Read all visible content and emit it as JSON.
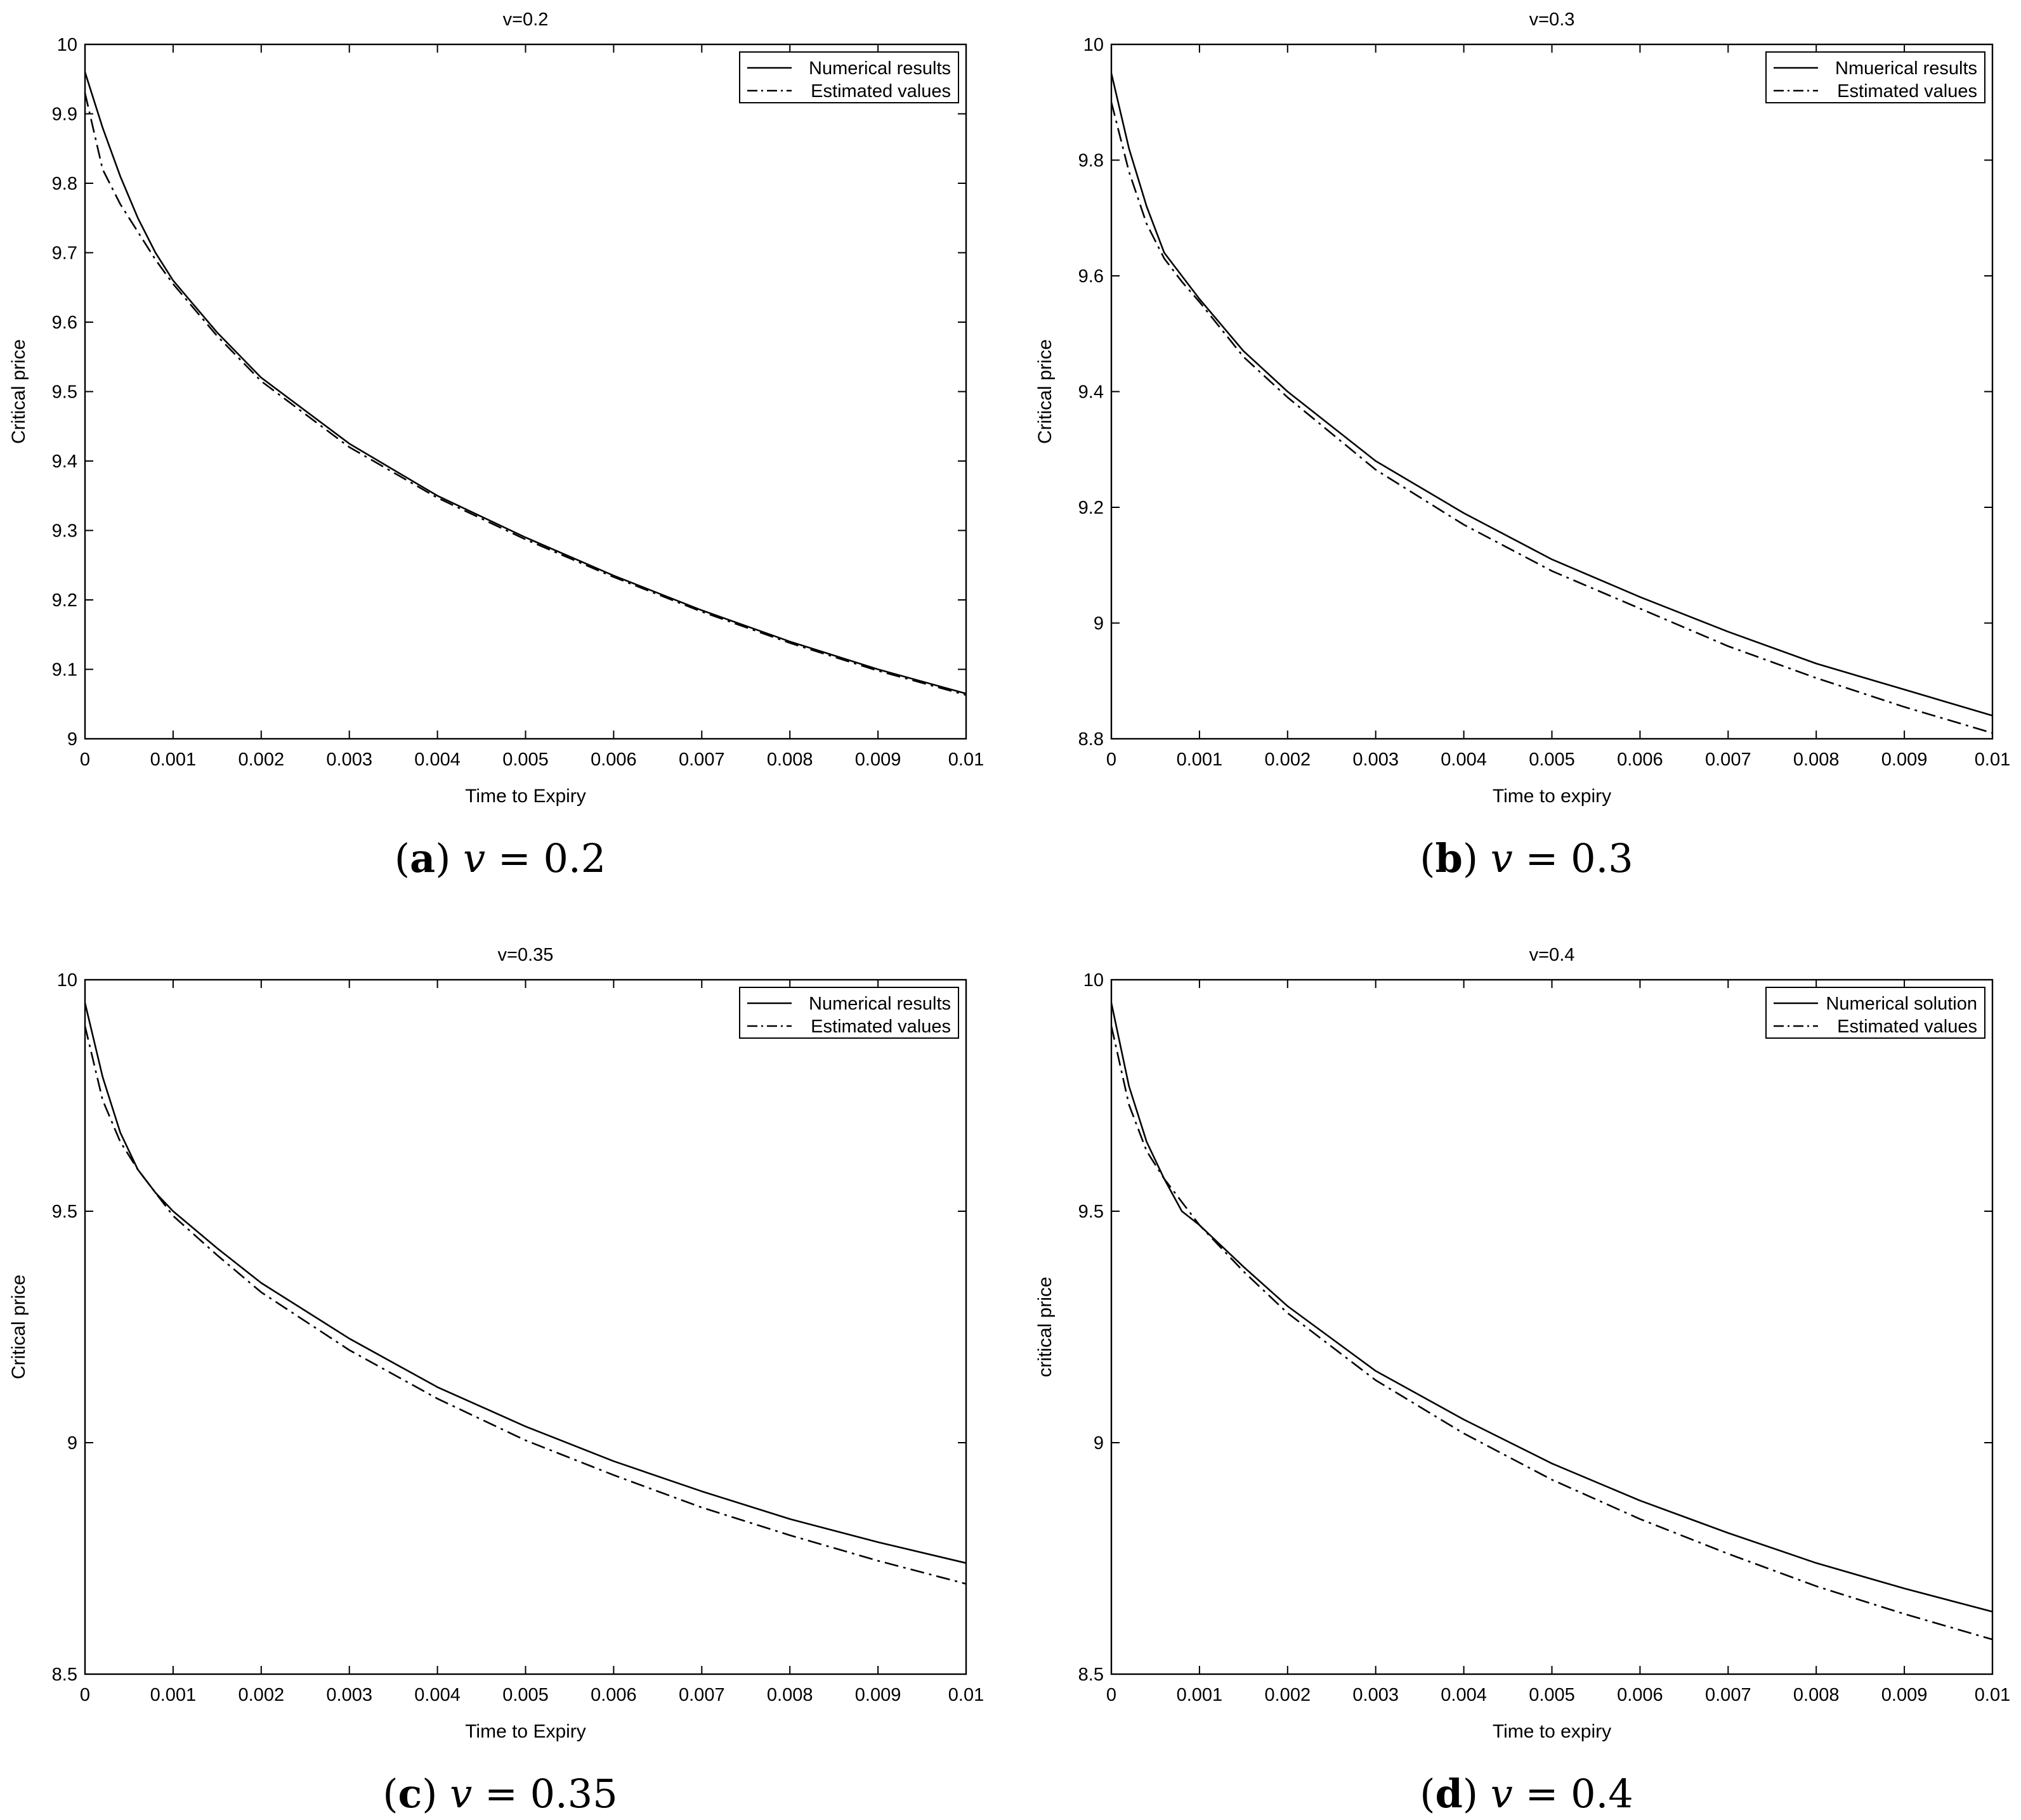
{
  "chart_data": [
    {
      "type": "line",
      "title": "v=0.2",
      "caption": {
        "letter": "a",
        "variable": "v",
        "value": "0.2"
      },
      "xlabel": "Time to Expiry",
      "ylabel": "Critical price",
      "xlim": [
        0,
        0.01
      ],
      "ylim": [
        9,
        10
      ],
      "xticks": [
        0,
        0.001,
        0.002,
        0.003,
        0.004,
        0.005,
        0.006,
        0.007,
        0.008,
        0.009,
        0.01
      ],
      "xtick_labels": [
        "0",
        "0.001",
        "0.002",
        "0.003",
        "0.004",
        "0.005",
        "0.006",
        "0.007",
        "0.008",
        "0.009",
        "0.01"
      ],
      "yticks": [
        9,
        9.1,
        9.2,
        9.3,
        9.4,
        9.5,
        9.6,
        9.7,
        9.8,
        9.9,
        10
      ],
      "ytick_labels": [
        "9",
        "9.1",
        "9.2",
        "9.3",
        "9.4",
        "9.5",
        "9.6",
        "9.7",
        "9.8",
        "9.9",
        "10"
      ],
      "legend_position": "top-right",
      "grid": false,
      "x": [
        0,
        0.0002,
        0.0004,
        0.0006,
        0.0008,
        0.001,
        0.0015,
        0.002,
        0.003,
        0.004,
        0.005,
        0.006,
        0.007,
        0.008,
        0.009,
        0.01
      ],
      "series": [
        {
          "name": "Numerical results",
          "style": "solid",
          "values": [
            9.96,
            9.88,
            9.81,
            9.75,
            9.7,
            9.66,
            9.585,
            9.52,
            9.425,
            9.35,
            9.29,
            9.235,
            9.185,
            9.14,
            9.1,
            9.065
          ]
        },
        {
          "name": "Estimated values",
          "style": "dashdot",
          "values": [
            9.93,
            9.82,
            9.77,
            9.73,
            9.69,
            9.655,
            9.58,
            9.515,
            9.42,
            9.347,
            9.287,
            9.233,
            9.183,
            9.138,
            9.098,
            9.063
          ]
        }
      ]
    },
    {
      "type": "line",
      "title": "v=0.3",
      "caption": {
        "letter": "b",
        "variable": "v",
        "value": "0.3"
      },
      "xlabel": "Time to expiry",
      "ylabel": "Critical price",
      "xlim": [
        0,
        0.01
      ],
      "ylim": [
        8.8,
        10
      ],
      "xticks": [
        0,
        0.001,
        0.002,
        0.003,
        0.004,
        0.005,
        0.006,
        0.007,
        0.008,
        0.009,
        0.01
      ],
      "xtick_labels": [
        "0",
        "0.001",
        "0.002",
        "0.003",
        "0.004",
        "0.005",
        "0.006",
        "0.007",
        "0.008",
        "0.009",
        "0.01"
      ],
      "yticks": [
        8.8,
        9,
        9.2,
        9.4,
        9.6,
        9.8,
        10
      ],
      "ytick_labels": [
        "8.8",
        "9",
        "9.2",
        "9.4",
        "9.6",
        "9.8",
        "10"
      ],
      "legend_position": "top-right",
      "grid": false,
      "x": [
        0,
        0.0002,
        0.0004,
        0.0006,
        0.0008,
        0.001,
        0.0015,
        0.002,
        0.003,
        0.004,
        0.005,
        0.006,
        0.007,
        0.008,
        0.009,
        0.01
      ],
      "series": [
        {
          "name": "Nmuerical results",
          "style": "solid",
          "values": [
            9.95,
            9.82,
            9.72,
            9.64,
            9.6,
            9.56,
            9.47,
            9.4,
            9.28,
            9.19,
            9.11,
            9.045,
            8.985,
            8.93,
            8.885,
            8.84
          ]
        },
        {
          "name": "Estimated values",
          "style": "dashdot",
          "values": [
            9.9,
            9.78,
            9.69,
            9.63,
            9.59,
            9.555,
            9.46,
            9.39,
            9.265,
            9.17,
            9.09,
            9.025,
            8.96,
            8.905,
            8.855,
            8.81
          ]
        }
      ]
    },
    {
      "type": "line",
      "title": "v=0.35",
      "caption": {
        "letter": "c",
        "variable": "v",
        "value": "0.35"
      },
      "xlabel": "Time to Expiry",
      "ylabel": "Critical price",
      "xlim": [
        0,
        0.01
      ],
      "ylim": [
        8.5,
        10
      ],
      "xticks": [
        0,
        0.001,
        0.002,
        0.003,
        0.004,
        0.005,
        0.006,
        0.007,
        0.008,
        0.009,
        0.01
      ],
      "xtick_labels": [
        "0",
        "0.001",
        "0.002",
        "0.003",
        "0.004",
        "0.005",
        "0.006",
        "0.007",
        "0.008",
        "0.009",
        "0.01"
      ],
      "yticks": [
        8.5,
        9,
        9.5,
        10
      ],
      "ytick_labels": [
        "8.5",
        "9",
        "9.5",
        "10"
      ],
      "legend_position": "top-right",
      "grid": false,
      "x": [
        0,
        0.0002,
        0.0004,
        0.0006,
        0.0008,
        0.001,
        0.0015,
        0.002,
        0.003,
        0.004,
        0.005,
        0.006,
        0.007,
        0.008,
        0.009,
        0.01
      ],
      "series": [
        {
          "name": "Numerical results",
          "style": "solid",
          "values": [
            9.95,
            9.79,
            9.67,
            9.59,
            9.54,
            9.5,
            9.42,
            9.345,
            9.225,
            9.12,
            9.035,
            8.96,
            8.895,
            8.835,
            8.785,
            8.74
          ]
        },
        {
          "name": "Estimated values",
          "style": "dashdot",
          "values": [
            9.9,
            9.74,
            9.65,
            9.59,
            9.54,
            9.49,
            9.405,
            9.325,
            9.2,
            9.095,
            9.005,
            8.93,
            8.86,
            8.8,
            8.745,
            8.695
          ]
        }
      ]
    },
    {
      "type": "line",
      "title": "v=0.4",
      "caption": {
        "letter": "d",
        "variable": "v",
        "value": "0.4"
      },
      "xlabel": "Time to expiry",
      "ylabel": "critical price",
      "xlim": [
        0,
        0.01
      ],
      "ylim": [
        8.5,
        10
      ],
      "xticks": [
        0,
        0.001,
        0.002,
        0.003,
        0.004,
        0.005,
        0.006,
        0.007,
        0.008,
        0.009,
        0.01
      ],
      "xtick_labels": [
        "0",
        "0.001",
        "0.002",
        "0.003",
        "0.004",
        "0.005",
        "0.006",
        "0.007",
        "0.008",
        "0.009",
        "0.01"
      ],
      "yticks": [
        8.5,
        9,
        9.5,
        10
      ],
      "ytick_labels": [
        "8.5",
        "9",
        "9.5",
        "10"
      ],
      "legend_position": "top-right",
      "grid": false,
      "x": [
        0,
        0.0002,
        0.0004,
        0.0006,
        0.0008,
        0.001,
        0.0015,
        0.002,
        0.003,
        0.004,
        0.005,
        0.006,
        0.007,
        0.008,
        0.009,
        0.01
      ],
      "series": [
        {
          "name": "Numerical solution",
          "style": "solid",
          "values": [
            9.95,
            9.77,
            9.65,
            9.57,
            9.5,
            9.47,
            9.38,
            9.295,
            9.155,
            9.05,
            8.955,
            8.875,
            8.805,
            8.74,
            8.685,
            8.635
          ]
        },
        {
          "name": "Estimated values",
          "style": "dashdot",
          "values": [
            9.9,
            9.73,
            9.63,
            9.57,
            9.52,
            9.47,
            9.37,
            9.28,
            9.135,
            9.02,
            8.92,
            8.835,
            8.76,
            8.69,
            8.63,
            8.575
          ]
        }
      ]
    }
  ]
}
